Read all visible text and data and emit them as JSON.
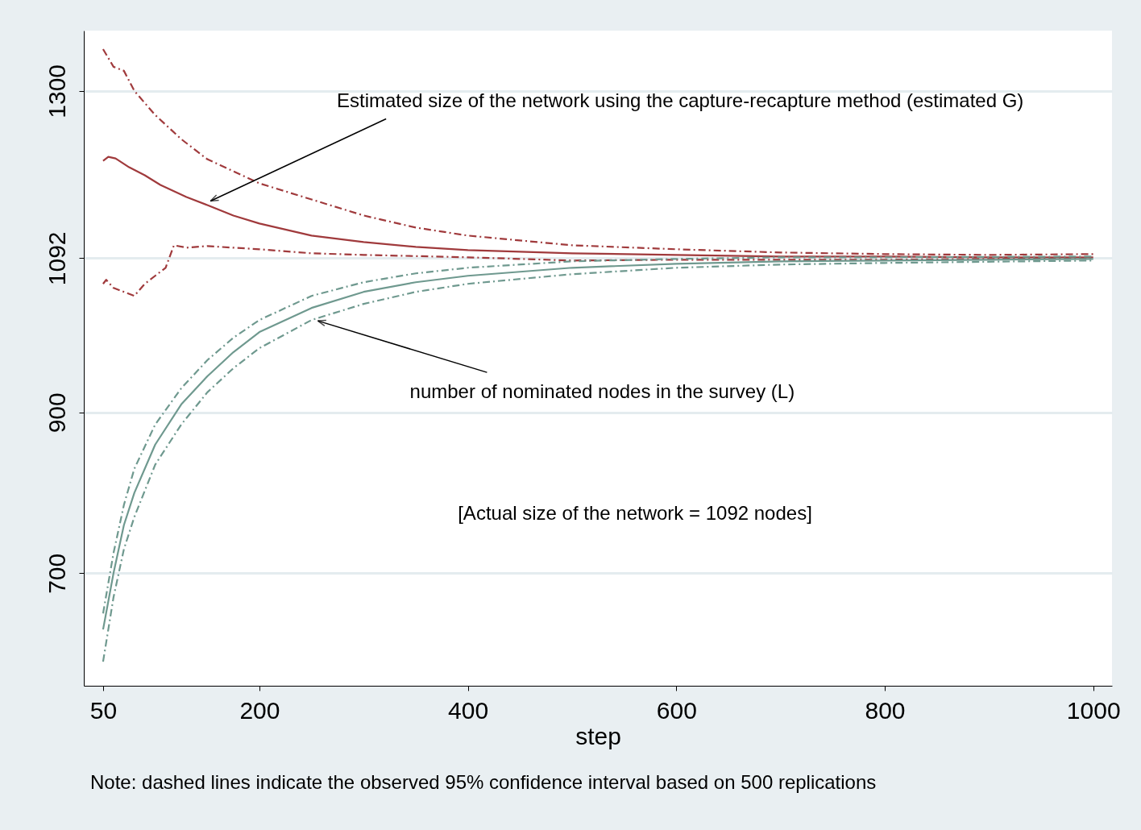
{
  "chart_data": {
    "type": "line",
    "xlabel": "step",
    "xlim": [
      31.5,
      1018
    ],
    "xticks": [
      50,
      200,
      400,
      600,
      800,
      1000
    ],
    "ylim": [
      560,
      1375
    ],
    "yticks": [
      700,
      900,
      1092,
      1300
    ],
    "grid": "y",
    "annotations": [
      {
        "text": "Estimated size of the network using the capture-recapture method (estimated G)",
        "x": 153,
        "y": 1163
      },
      {
        "text": "number of nominated nodes in the survey (L)",
        "x": 256,
        "y": 1014
      },
      "[Actual size of the network = 1092 nodes]",
      "Note: dashed lines indicate the observed 95% confidence interval based on 500 replications"
    ],
    "series": [
      {
        "color": "#a03a3c",
        "line_style": "solid",
        "x": [
          50,
          55,
          62,
          75,
          90,
          105,
          130,
          150,
          175,
          200,
          250,
          300,
          350,
          400,
          500,
          600,
          700,
          800,
          900,
          1000
        ],
        "values": [
          1213,
          1218,
          1216,
          1205,
          1195,
          1183,
          1168,
          1158,
          1145,
          1135,
          1120,
          1112,
          1106,
          1102,
          1098,
          1096,
          1094,
          1094,
          1093,
          1093
        ]
      },
      {
        "color": "#a03a3c",
        "line_style": "dashed",
        "x": [
          50,
          60,
          70,
          80,
          100,
          125,
          150,
          175,
          200,
          250,
          300,
          350,
          400,
          500,
          600,
          700,
          800,
          900,
          1000
        ],
        "values": [
          1352,
          1330,
          1325,
          1300,
          1270,
          1240,
          1215,
          1200,
          1185,
          1165,
          1145,
          1130,
          1120,
          1108,
          1103,
          1099,
          1097,
          1096,
          1097
        ]
      },
      {
        "color": "#a03a3c",
        "line_style": "dashed",
        "x": [
          50,
          53,
          60,
          70,
          80,
          90,
          100,
          110,
          118,
          130,
          150,
          200,
          250,
          300,
          400,
          500,
          600,
          700,
          800,
          1000
        ],
        "values": [
          1060,
          1065,
          1055,
          1050,
          1045,
          1060,
          1070,
          1080,
          1108,
          1105,
          1107,
          1103,
          1098,
          1096,
          1093,
          1089,
          1090,
          1090,
          1090,
          1092
        ]
      },
      {
        "color": "#6f998f",
        "line_style": "solid",
        "x": [
          50,
          60,
          70,
          80,
          100,
          125,
          150,
          175,
          200,
          250,
          300,
          350,
          400,
          500,
          600,
          700,
          800,
          900,
          1000
        ],
        "values": [
          630,
          700,
          760,
          800,
          860,
          910,
          945,
          975,
          1000,
          1030,
          1050,
          1062,
          1070,
          1080,
          1085,
          1088,
          1089,
          1090,
          1091
        ]
      },
      {
        "color": "#6f998f",
        "line_style": "dashed",
        "x": [
          50,
          60,
          70,
          80,
          100,
          125,
          150,
          175,
          200,
          250,
          300,
          350,
          400,
          500,
          600,
          700,
          800,
          1000
        ],
        "values": [
          650,
          725,
          785,
          830,
          885,
          930,
          965,
          993,
          1015,
          1045,
          1062,
          1073,
          1080,
          1088,
          1091,
          1093,
          1093,
          1094
        ]
      },
      {
        "color": "#6f998f",
        "line_style": "dashed",
        "x": [
          50,
          60,
          70,
          80,
          100,
          125,
          150,
          175,
          200,
          250,
          300,
          350,
          400,
          500,
          600,
          700,
          800,
          1000
        ],
        "values": [
          590,
          670,
          730,
          770,
          835,
          885,
          925,
          955,
          980,
          1015,
          1035,
          1050,
          1060,
          1072,
          1080,
          1084,
          1086,
          1089
        ]
      }
    ]
  }
}
